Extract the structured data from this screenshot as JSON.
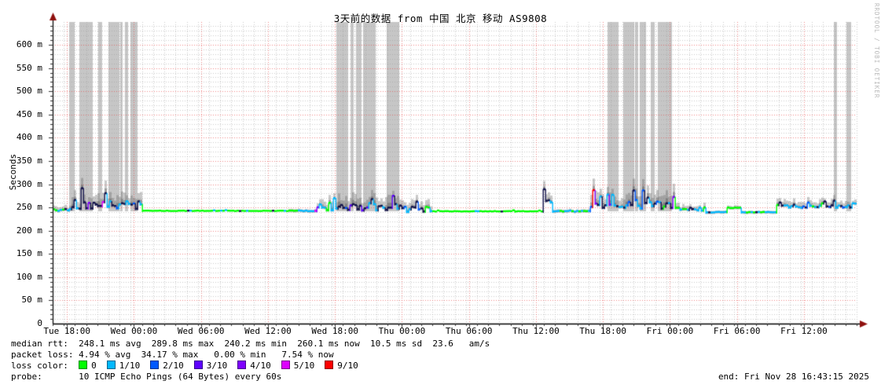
{
  "title": "3天前的数据 from 中国 北京 移动 AS9808",
  "watermark": "RRDTOOL / TOBI OETIKER",
  "y_axis": {
    "label": "Seconds",
    "ticks": [
      {
        "label": "600 m",
        "ms": 600
      },
      {
        "label": "550 m",
        "ms": 550
      },
      {
        "label": "500 m",
        "ms": 500
      },
      {
        "label": "450 m",
        "ms": 450
      },
      {
        "label": "400 m",
        "ms": 400
      },
      {
        "label": "350 m",
        "ms": 350
      },
      {
        "label": "300 m",
        "ms": 300
      },
      {
        "label": "250 m",
        "ms": 250
      },
      {
        "label": "200 m",
        "ms": 200
      },
      {
        "label": "150 m",
        "ms": 150
      },
      {
        "label": "100 m",
        "ms": 100
      },
      {
        "label": "50 m",
        "ms": 50
      },
      {
        "label": "0",
        "ms": 0
      }
    ]
  },
  "x_axis": {
    "ticks": [
      {
        "label": "Tue 18:00",
        "hour": 1.28
      },
      {
        "label": "Wed 00:00",
        "hour": 7.28
      },
      {
        "label": "Wed 06:00",
        "hour": 13.28
      },
      {
        "label": "Wed 12:00",
        "hour": 19.28
      },
      {
        "label": "Wed 18:00",
        "hour": 25.28
      },
      {
        "label": "Thu 00:00",
        "hour": 31.28
      },
      {
        "label": "Thu 06:00",
        "hour": 37.28
      },
      {
        "label": "Thu 12:00",
        "hour": 43.28
      },
      {
        "label": "Thu 18:00",
        "hour": 49.28
      },
      {
        "label": "Fri 00:00",
        "hour": 55.28
      },
      {
        "label": "Fri 06:00",
        "hour": 61.28
      },
      {
        "label": "Fri 12:00",
        "hour": 67.28
      }
    ]
  },
  "footer": {
    "median_rtt_line": "median rtt:  248.1 ms avg  289.8 ms max  240.2 ms min  260.1 ms now  10.5 ms sd  23.6   am/s",
    "packet_loss_line": "packet loss: 4.94 % avg  34.17 % max   0.00 % min   7.54 % now",
    "probe_line": "probe:       10 ICMP Echo Pings (64 Bytes) every 60s",
    "end_line": "end: Fri Nov 28 16:43:15 2025"
  },
  "legend": {
    "label": "loss color:  "
  },
  "chart_data": {
    "type": "line",
    "title": "3天前的数据 from 中国 北京 移动 AS9808",
    "ylabel": "Seconds",
    "ylim_ms": [
      0,
      650
    ],
    "time_span_hours": 72,
    "end_time": "Fri Nov 28 16:43:15 2025",
    "x_tick_labels": [
      "Tue 18:00",
      "Wed 00:00",
      "Wed 06:00",
      "Wed 12:00",
      "Wed 18:00",
      "Thu 00:00",
      "Thu 06:00",
      "Thu 12:00",
      "Thu 18:00",
      "Fri 00:00",
      "Fri 06:00",
      "Fri 12:00"
    ],
    "y_tick_labels": [
      "600 m",
      "550 m",
      "500 m",
      "450 m",
      "400 m",
      "350 m",
      "300 m",
      "250 m",
      "200 m",
      "150 m",
      "100 m",
      "50 m",
      "0"
    ],
    "stats": {
      "median_rtt": {
        "avg_ms": 248.1,
        "max_ms": 289.8,
        "min_ms": 240.2,
        "now_ms": 260.1,
        "sd_ms": 10.5,
        "am_per_s": 23.6
      },
      "packet_loss": {
        "avg_pct": 4.94,
        "max_pct": 34.17,
        "min_pct": 0.0,
        "now_pct": 7.54
      }
    },
    "probe": "10 ICMP Echo Pings (64 Bytes) every 60s",
    "loss_legend": [
      {
        "key": "l0",
        "label": "0",
        "color": "#00ff00"
      },
      {
        "key": "l1",
        "label": "1/10",
        "color": "#00b8ff"
      },
      {
        "key": "l2",
        "label": "2/10",
        "color": "#0059ff"
      },
      {
        "key": "l3",
        "label": "3/10",
        "color": "#5e00ff"
      },
      {
        "key": "l4",
        "label": "4/10",
        "color": "#7e00ff"
      },
      {
        "key": "l5",
        "label": "5/10",
        "color": "#dd00ff"
      },
      {
        "key": "l9",
        "label": "9/10",
        "color": "#ff0000"
      }
    ],
    "colors": {
      "dark": "#12124a",
      "smoke": "#5a5a5a",
      "unknown_band": "#c6c6c6",
      "grid_major": "#e64646",
      "grid_minor": "#969696",
      "axis_arrow": "#8f100e"
    },
    "median_segments": [
      {
        "from": 0.0,
        "to": 1.5,
        "base_ms": 245,
        "amp_ms": 9,
        "smoke_ms": 8,
        "mix": {
          "l1": 0.45,
          "l0": 0.3,
          "dark": 0.25
        }
      },
      {
        "from": 1.5,
        "to": 8.0,
        "base_ms": 256,
        "amp_ms": 34,
        "smoke_ms": 26,
        "mix": {
          "dark": 0.42,
          "l1": 0.27,
          "l2": 0.14,
          "l3": 0.07,
          "l4": 0.05,
          "l0": 0.04,
          "l5": 0.01
        }
      },
      {
        "from": 8.0,
        "to": 21.0,
        "base_ms": 243,
        "amp_ms": 2,
        "smoke_ms": 0,
        "mix": {
          "l0": 0.86,
          "l1": 0.12,
          "dark": 0.02
        }
      },
      {
        "from": 21.0,
        "to": 23.5,
        "base_ms": 243,
        "amp_ms": 4,
        "smoke_ms": 2,
        "mix": {
          "l1": 0.55,
          "l0": 0.4,
          "l5": 0.05
        }
      },
      {
        "from": 23.5,
        "to": 25.4,
        "base_ms": 247,
        "amp_ms": 22,
        "smoke_ms": 16,
        "mix": {
          "l1": 0.4,
          "dark": 0.35,
          "l0": 0.15,
          "l4": 0.1
        }
      },
      {
        "from": 25.4,
        "to": 31.1,
        "base_ms": 252,
        "amp_ms": 32,
        "smoke_ms": 26,
        "mix": {
          "dark": 0.4,
          "l1": 0.3,
          "l2": 0.15,
          "l3": 0.08,
          "l0": 0.05,
          "l5": 0.02
        }
      },
      {
        "from": 31.1,
        "to": 33.8,
        "base_ms": 246,
        "amp_ms": 24,
        "smoke_ms": 18,
        "mix": {
          "l1": 0.45,
          "dark": 0.35,
          "l0": 0.15,
          "l2": 0.05
        }
      },
      {
        "from": 33.8,
        "to": 43.8,
        "base_ms": 242,
        "amp_ms": 2,
        "smoke_ms": 0,
        "mix": {
          "l0": 0.9,
          "l1": 0.08,
          "dark": 0.02
        }
      },
      {
        "from": 43.8,
        "to": 44.6,
        "base_ms": 260,
        "amp_ms": 30,
        "smoke_ms": 18,
        "mix": {
          "dark": 0.6,
          "l1": 0.3,
          "l2": 0.1
        }
      },
      {
        "from": 44.6,
        "to": 48.0,
        "base_ms": 242,
        "amp_ms": 4,
        "smoke_ms": 2,
        "mix": {
          "l1": 0.6,
          "l0": 0.35,
          "dark": 0.05
        }
      },
      {
        "from": 48.0,
        "to": 55.6,
        "base_ms": 255,
        "amp_ms": 32,
        "smoke_ms": 26,
        "mix": {
          "dark": 0.4,
          "l1": 0.28,
          "l2": 0.13,
          "l3": 0.08,
          "l4": 0.06,
          "l0": 0.04,
          "l9": 0.01
        }
      },
      {
        "from": 55.6,
        "to": 58.3,
        "base_ms": 247,
        "amp_ms": 13,
        "smoke_ms": 9,
        "mix": {
          "l0": 0.35,
          "l1": 0.35,
          "dark": 0.3
        }
      },
      {
        "from": 58.3,
        "to": 60.3,
        "base_ms": 240,
        "amp_ms": 3,
        "smoke_ms": 1,
        "mix": {
          "l1": 0.75,
          "l0": 0.2,
          "dark": 0.05
        }
      },
      {
        "from": 60.3,
        "to": 61.6,
        "base_ms": 249,
        "amp_ms": 5,
        "smoke_ms": 3,
        "mix": {
          "l0": 0.8,
          "l1": 0.2
        }
      },
      {
        "from": 61.6,
        "to": 64.8,
        "base_ms": 240,
        "amp_ms": 3,
        "smoke_ms": 1,
        "mix": {
          "l1": 0.6,
          "l0": 0.35,
          "dark": 0.05
        }
      },
      {
        "from": 64.8,
        "to": 71.5,
        "base_ms": 253,
        "amp_ms": 13,
        "smoke_ms": 12,
        "mix": {
          "l1": 0.5,
          "dark": 0.3,
          "l2": 0.12,
          "l0": 0.08
        }
      },
      {
        "from": 71.5,
        "to": 72.0,
        "base_ms": 258,
        "amp_ms": 6,
        "smoke_ms": 8,
        "mix": {
          "l1": 0.6,
          "dark": 0.4
        }
      }
    ],
    "unknown_bands_hours": [
      [
        1.48,
        1.97
      ],
      [
        2.39,
        3.59
      ],
      [
        4.08,
        4.43
      ],
      [
        5.0,
        5.98
      ],
      [
        6.05,
        6.26
      ],
      [
        6.47,
        6.76
      ],
      [
        6.97,
        7.6
      ],
      [
        25.41,
        26.46
      ],
      [
        26.68,
        26.95
      ],
      [
        27.17,
        27.66
      ],
      [
        27.8,
        28.93
      ],
      [
        29.91,
        31.04
      ],
      [
        49.69,
        50.68
      ],
      [
        51.1,
        52.08
      ],
      [
        52.15,
        52.43
      ],
      [
        52.57,
        53.14
      ],
      [
        53.56,
        53.91
      ],
      [
        54.19,
        55.46
      ],
      [
        69.96,
        70.24
      ],
      [
        71.09,
        71.51
      ]
    ]
  }
}
